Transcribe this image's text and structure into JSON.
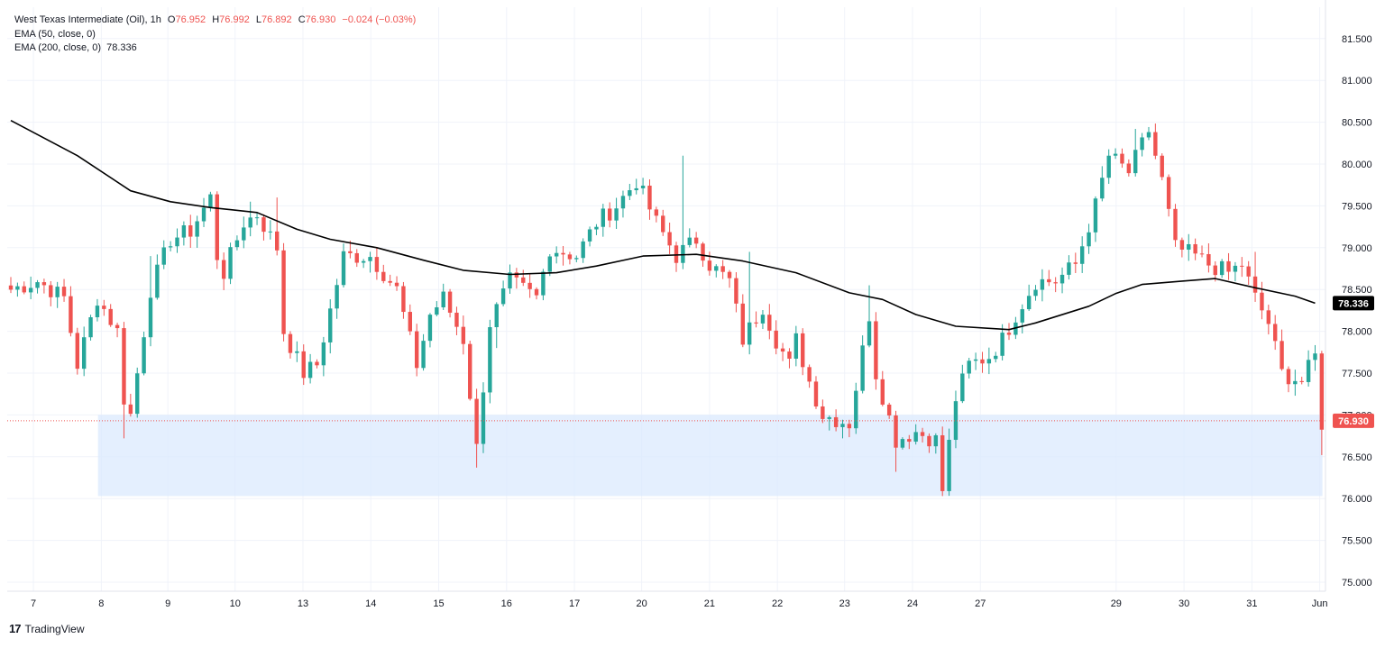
{
  "colors": {
    "up": "#26a69a",
    "down": "#ef5350",
    "ema": "#000000",
    "zone": "#dbeafe",
    "grid": "#f0f3fa",
    "last_price_line": "#ef5350",
    "last_price_badge": "#ef5350",
    "ema_badge": "#000000"
  },
  "legend": {
    "symbol": "West Texas Intermediate (Oil)",
    "timeframe": "1h",
    "o_label": "O",
    "o_value": "76.952",
    "h_label": "H",
    "h_value": "76.992",
    "l_label": "L",
    "l_value": "76.892",
    "c_label": "C",
    "c_value": "76.930",
    "change": "−0.024 (−0.03%)",
    "ema50_label": "EMA (50, close, 0)",
    "ema200_label": "EMA (200, close, 0)",
    "ema200_value": "78.336"
  },
  "brand": {
    "name": "TradingView",
    "logo_glyph": "17"
  },
  "chart_data": {
    "type": "candlestick",
    "interval": "1h",
    "y_range": [
      74.9,
      81.7
    ],
    "y_ticks": [
      "75.000",
      "75.500",
      "76.000",
      "76.500",
      "77.000",
      "77.500",
      "78.000",
      "78.500",
      "79.000",
      "79.500",
      "80.000",
      "80.500",
      "81.000",
      "81.500"
    ],
    "x_ticks": [
      "7",
      "8",
      "9",
      "10",
      "13",
      "14",
      "15",
      "16",
      "17",
      "20",
      "21",
      "22",
      "23",
      "24",
      "27",
      "29",
      "30",
      "31",
      "Jun"
    ],
    "x_tick_slots": [
      3.4,
      13.6,
      23.6,
      33.7,
      43.9,
      54.1,
      64.3,
      74.5,
      84.7,
      94.8,
      105,
      115.2,
      125.3,
      135.5,
      145.7,
      166.1,
      176.3,
      186.5,
      196.7
    ],
    "total_slots": 198,
    "price_anchors": [
      [
        0,
        78.5
      ],
      [
        4,
        78.6
      ],
      [
        8,
        78.4
      ],
      [
        10,
        77.6
      ],
      [
        13,
        78.4
      ],
      [
        16,
        78.0
      ],
      [
        17,
        77.2
      ],
      [
        18,
        77.0
      ],
      [
        19,
        77.5
      ],
      [
        21,
        78.5
      ],
      [
        24,
        79.1
      ],
      [
        27,
        79.2
      ],
      [
        30,
        79.6
      ],
      [
        31,
        78.9
      ],
      [
        32,
        78.7
      ],
      [
        35,
        79.3
      ],
      [
        37,
        79.4
      ],
      [
        40,
        79.0
      ],
      [
        41,
        78.0
      ],
      [
        44,
        77.5
      ],
      [
        46,
        77.6
      ],
      [
        50,
        78.9
      ],
      [
        54,
        78.9
      ],
      [
        58,
        78.5
      ],
      [
        61,
        77.6
      ],
      [
        63,
        78.2
      ],
      [
        65,
        78.4
      ],
      [
        68,
        77.9
      ],
      [
        70,
        76.6
      ],
      [
        72,
        78.1
      ],
      [
        75,
        78.6
      ],
      [
        79,
        78.4
      ],
      [
        81,
        79.0
      ],
      [
        85,
        78.9
      ],
      [
        88,
        79.3
      ],
      [
        91,
        79.5
      ],
      [
        94,
        79.8
      ],
      [
        97,
        79.3
      ],
      [
        100,
        78.9
      ],
      [
        103,
        79.1
      ],
      [
        105,
        78.8
      ],
      [
        108,
        78.6
      ],
      [
        110,
        77.9
      ],
      [
        113,
        78.3
      ],
      [
        115,
        77.9
      ],
      [
        117,
        77.6
      ],
      [
        118,
        77.9
      ],
      [
        120,
        77.4
      ],
      [
        122,
        77.0
      ],
      [
        126,
        76.9
      ],
      [
        129,
        78.2
      ],
      [
        130,
        77.5
      ],
      [
        133,
        76.7
      ],
      [
        136,
        76.8
      ],
      [
        139,
        76.7
      ],
      [
        140,
        76.1
      ],
      [
        142,
        77.2
      ],
      [
        144,
        77.6
      ],
      [
        147,
        77.7
      ],
      [
        149,
        77.9
      ],
      [
        151,
        78.2
      ],
      [
        154,
        78.6
      ],
      [
        157,
        78.6
      ],
      [
        160,
        78.8
      ],
      [
        163,
        79.5
      ],
      [
        165,
        80.1
      ],
      [
        168,
        79.9
      ],
      [
        171,
        80.4
      ],
      [
        173,
        79.8
      ],
      [
        175,
        79.0
      ],
      [
        178,
        78.9
      ],
      [
        180,
        78.8
      ],
      [
        183,
        78.7
      ],
      [
        185,
        78.8
      ],
      [
        187,
        78.4
      ],
      [
        189,
        78.1
      ],
      [
        191,
        77.5
      ],
      [
        194,
        77.4
      ],
      [
        196,
        77.7
      ],
      [
        197,
        76.9
      ]
    ],
    "extremes": [
      [
        17,
        "low",
        76.72
      ],
      [
        21,
        "high",
        78.9
      ],
      [
        36,
        "high",
        79.55
      ],
      [
        40,
        "high",
        79.6
      ],
      [
        50,
        "high",
        79.05
      ],
      [
        70,
        "low",
        76.37
      ],
      [
        73,
        "low",
        77.8
      ],
      [
        101,
        "high",
        80.1
      ],
      [
        111,
        "high",
        78.95
      ],
      [
        129,
        "high",
        78.55
      ],
      [
        133,
        "low",
        76.32
      ],
      [
        140,
        "low",
        76.03
      ],
      [
        169,
        "high",
        80.42
      ],
      [
        187,
        "high",
        78.95
      ],
      [
        197,
        "low",
        76.52
      ]
    ],
    "ema200": [
      [
        0,
        80.52
      ],
      [
        10,
        80.1
      ],
      [
        18,
        79.68
      ],
      [
        24,
        79.55
      ],
      [
        30,
        79.48
      ],
      [
        37,
        79.42
      ],
      [
        43,
        79.22
      ],
      [
        48,
        79.1
      ],
      [
        55,
        79.0
      ],
      [
        62,
        78.85
      ],
      [
        68,
        78.73
      ],
      [
        75,
        78.68
      ],
      [
        82,
        78.7
      ],
      [
        88,
        78.78
      ],
      [
        95,
        78.9
      ],
      [
        103,
        78.92
      ],
      [
        110,
        78.84
      ],
      [
        118,
        78.7
      ],
      [
        126,
        78.46
      ],
      [
        131,
        78.38
      ],
      [
        136,
        78.2
      ],
      [
        142,
        78.06
      ],
      [
        150,
        78.02
      ],
      [
        154,
        78.1
      ],
      [
        162,
        78.3
      ],
      [
        166,
        78.45
      ],
      [
        170,
        78.56
      ],
      [
        176,
        78.6
      ],
      [
        181,
        78.63
      ],
      [
        187,
        78.52
      ],
      [
        193,
        78.42
      ],
      [
        196,
        78.336
      ]
    ],
    "support_zone": {
      "from": 76.03,
      "to": 77.0
    },
    "last_price": 76.93,
    "last_price_label": "76.930",
    "ema200_label": "78.336"
  }
}
